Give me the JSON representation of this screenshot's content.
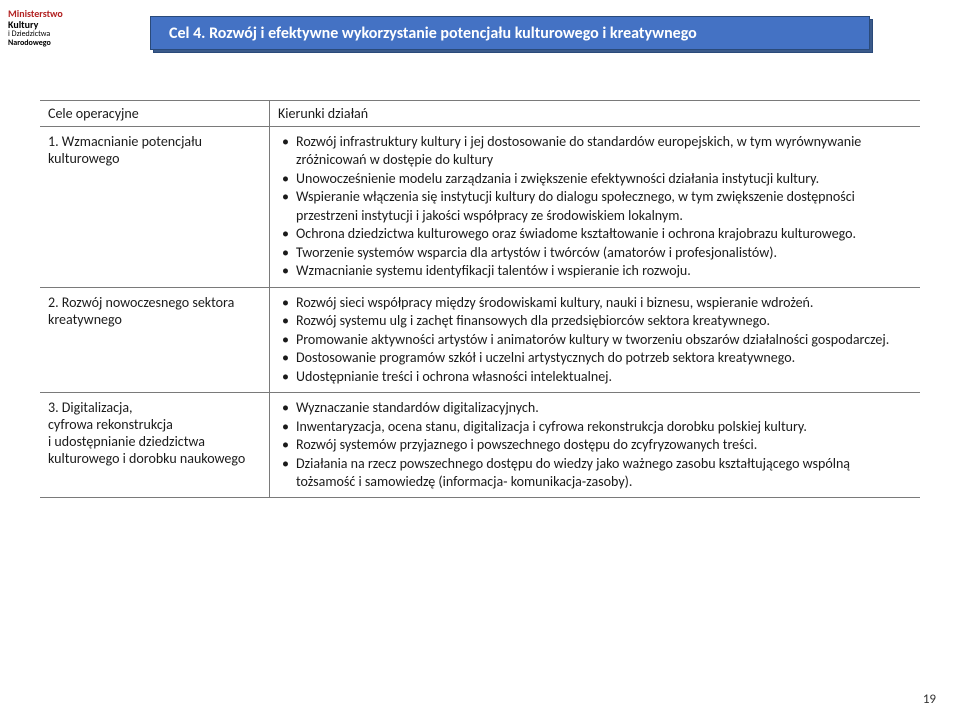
{
  "logo": {
    "line1": "Ministerstwo",
    "line2": "Kultury",
    "line3": "i Dziedzictwa",
    "line4": "Narodowego"
  },
  "title": "Cel 4. Rozwój i efektywne wykorzystanie potencjału kulturowego i kreatywnego",
  "table": {
    "header_left": "Cele operacyjne",
    "header_right": "Kierunki działań",
    "rows": [
      {
        "left": "1. Wzmacnianie potencjału kulturowego",
        "bullets": [
          "Rozwój infrastruktury kultury i jej dostosowanie do standardów europejskich, w tym wyrównywanie zróżnicowań w dostępie do kultury",
          "Unowocześnienie modelu zarządzania i zwiększenie efektywności działania instytucji kultury.",
          "Wspieranie włączenia się instytucji kultury do dialogu społecznego, w tym zwiększenie dostępności przestrzeni instytucji i jakości współpracy ze środowiskiem lokalnym.",
          "Ochrona dziedzictwa kulturowego oraz świadome kształtowanie i ochrona krajobrazu kulturowego.",
          "Tworzenie systemów wsparcia dla artystów i twórców (amatorów i profesjonalistów).",
          "Wzmacnianie systemu identyfikacji talentów i wspieranie ich rozwoju."
        ]
      },
      {
        "left": "2. Rozwój nowoczesnego sektora kreatywnego",
        "bullets": [
          "Rozwój  sieci współpracy między środowiskami kultury, nauki i biznesu, wspieranie wdrożeń.",
          "Rozwój systemu ulg i zachęt finansowych dla przedsiębiorców sektora kreatywnego.",
          "Promowanie aktywności artystów i animatorów kultury w tworzeniu obszarów działalności gospodarczej.",
          "Dostosowanie programów szkół i uczelni artystycznych do potrzeb sektora kreatywnego.",
          "Udostępnianie treści i ochrona własności intelektualnej."
        ]
      },
      {
        "left": "3. Digitalizacja,\ncyfrowa rekonstrukcja\ni udostępnianie dziedzictwa kulturowego i dorobku naukowego",
        "bullets": [
          "Wyznaczanie standardów digitalizacyjnych.",
          "Inwentaryzacja, ocena stanu, digitalizacja i cyfrowa rekonstrukcja dorobku polskiej kultury.",
          "Rozwój systemów przyjaznego i powszechnego dostępu do zcyfryzowanych treści.",
          "Działania na rzecz powszechnego dostępu do wiedzy jako ważnego zasobu kształtującego wspólną tożsamość i samowiedzę (informacja- komunikacja-zasoby)."
        ]
      }
    ]
  },
  "page_number": "19",
  "colors": {
    "title_bg": "#4472c4",
    "title_shadow": "#3a5a8a",
    "title_text": "#ffffff",
    "body_text": "#1a1a1a",
    "border": "#7a7a7a",
    "logo_red": "#b22222"
  }
}
